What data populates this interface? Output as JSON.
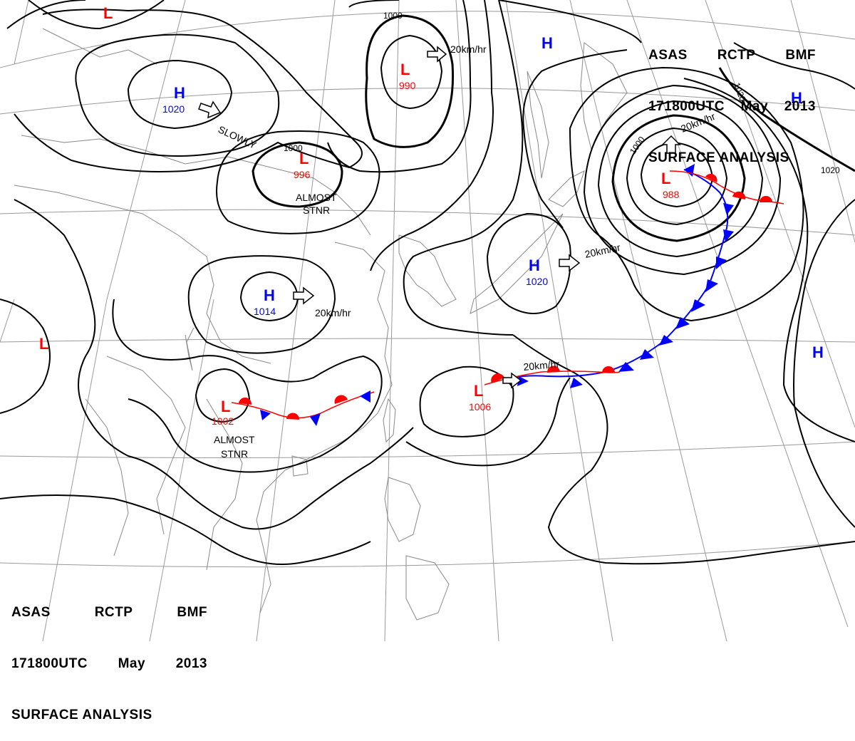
{
  "title_top_right": {
    "source": "ASAS",
    "station": "RCTP",
    "office": "BMF",
    "time": "171800UTC",
    "month": "May",
    "year": "2013",
    "product": "SURFACE ANALYSIS"
  },
  "title_bottom_left": {
    "source": "ASAS",
    "station": "RCTP",
    "office": "BMF",
    "time": "171800UTC",
    "month": "May",
    "year": "2013",
    "product": "SURFACE ANALYSIS"
  },
  "colors": {
    "high": "#0000ff",
    "low": "#ff0000",
    "isobar": "#000000",
    "coast": "#888888",
    "grid": "#999999",
    "cold_front": "#0000ff",
    "warm_front": "#ff0000"
  },
  "pressure_systems": [
    {
      "id": "low-top-left",
      "type": "L",
      "value": ""
    },
    {
      "id": "high-1020-west",
      "type": "H",
      "value": "1020"
    },
    {
      "id": "low-990",
      "type": "L",
      "value": "990"
    },
    {
      "id": "high-top-mid",
      "type": "H",
      "value": ""
    },
    {
      "id": "low-996",
      "type": "L",
      "value": "996"
    },
    {
      "id": "low-988",
      "type": "L",
      "value": "988"
    },
    {
      "id": "high-right",
      "type": "H",
      "value": ""
    },
    {
      "id": "high-1014",
      "type": "H",
      "value": "1014"
    },
    {
      "id": "high-1020-japan",
      "type": "H",
      "value": "1020"
    },
    {
      "id": "low-left",
      "type": "L",
      "value": ""
    },
    {
      "id": "low-1002",
      "type": "L",
      "value": "1002"
    },
    {
      "id": "low-1006",
      "type": "L",
      "value": "1006"
    },
    {
      "id": "high-lower-right",
      "type": "H",
      "value": ""
    }
  ],
  "isobar_labels": [
    "1000",
    "1000",
    "1000",
    "1020",
    "1020"
  ],
  "motion_notes": [
    "20km/hr",
    "SLOWLY",
    "20km/hr",
    "20km/hr",
    "20km/hr",
    "20km/hr",
    "ALMOST",
    "STNR",
    "ALMOST",
    "STNR"
  ]
}
